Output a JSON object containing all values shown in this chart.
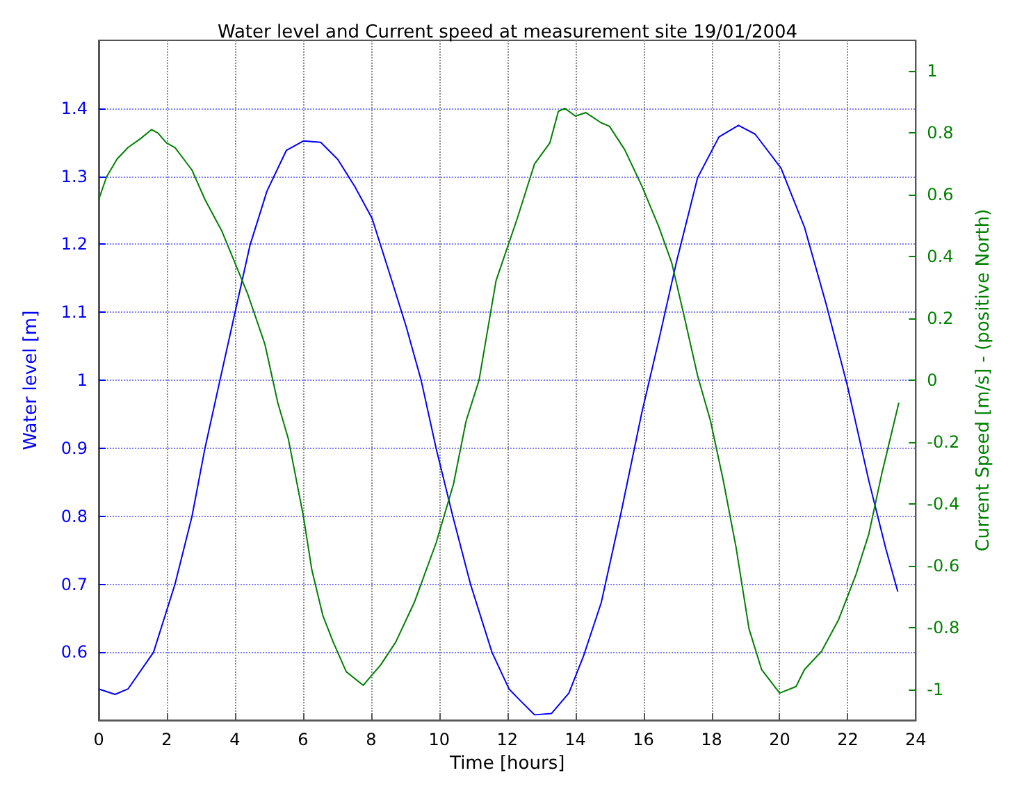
{
  "chart_data": {
    "type": "line",
    "title": "Water level and Current speed at measurement site 19/01/2004",
    "xlabel": "Time [hours]",
    "ylabel": "Water level [m]",
    "y2label": "Current Speed [m/s] - (positive North)",
    "xlim": [
      0,
      24
    ],
    "xticks": [
      0,
      2,
      4,
      6,
      8,
      10,
      12,
      14,
      16,
      18,
      20,
      22,
      24
    ],
    "ylim": [
      0.5,
      1.5
    ],
    "yticks": [
      0.6,
      0.7,
      0.8,
      0.9,
      1,
      1.1,
      1.2,
      1.3,
      1.4
    ],
    "y2lim": [
      -1.1,
      1.1
    ],
    "y2ticks": [
      -1,
      -0.8,
      -0.6,
      -0.4,
      -0.2,
      0,
      0.2,
      0.4,
      0.6,
      0.8,
      1
    ],
    "grid": true,
    "marker": "none",
    "line_style": "solid",
    "series": [
      {
        "color": "#0000ff",
        "x": [
          0,
          0.48,
          0.86,
          1.61,
          2.24,
          2.74,
          3.12,
          3.56,
          4.0,
          4.44,
          4.94,
          5.51,
          6.01,
          6.52,
          7.02,
          7.52,
          8.03,
          8.53,
          9.03,
          9.47,
          9.91,
          10.4,
          10.92,
          11.55,
          12.05,
          12.3,
          12.8,
          13.3,
          13.81,
          14.25,
          14.76,
          15.32,
          15.95,
          16.45,
          16.96,
          17.59,
          18.22,
          18.79,
          19.28,
          20.04,
          20.73,
          21.36,
          21.99,
          22.62,
          23.12,
          23.47
        ],
        "values": [
          0.546,
          0.538,
          0.546,
          0.6,
          0.7,
          0.8,
          0.9,
          1.0,
          1.099,
          1.198,
          1.278,
          1.338,
          1.352,
          1.35,
          1.325,
          1.285,
          1.238,
          1.159,
          1.079,
          1.0,
          0.9,
          0.8,
          0.7,
          0.6,
          0.546,
          0.533,
          0.508,
          0.51,
          0.54,
          0.596,
          0.673,
          0.8,
          0.952,
          1.059,
          1.172,
          1.298,
          1.358,
          1.375,
          1.362,
          1.312,
          1.225,
          1.113,
          0.992,
          0.852,
          0.752,
          0.689
        ]
      },
      {
        "color": "#008000",
        "axis": "y2",
        "x": [
          0,
          0.23,
          0.54,
          0.86,
          1.23,
          1.55,
          1.74,
          1.99,
          2.24,
          2.74,
          3.12,
          3.62,
          4.0,
          4.38,
          4.88,
          5.26,
          5.57,
          6.01,
          6.26,
          6.58,
          6.89,
          7.27,
          7.77,
          8.28,
          8.72,
          9.28,
          9.91,
          10.42,
          10.79,
          11.17,
          11.67,
          12.3,
          12.8,
          13.25,
          13.5,
          13.69,
          14.0,
          14.31,
          14.76,
          15.0,
          15.45,
          15.95,
          16.45,
          16.83,
          17.2,
          17.59,
          17.97,
          18.34,
          18.72,
          19.1,
          19.47,
          20.0,
          20.48,
          20.73,
          21.23,
          21.73,
          22.24,
          22.62,
          22.99,
          23.5
        ],
        "values": [
          0.585,
          0.658,
          0.716,
          0.753,
          0.782,
          0.811,
          0.8,
          0.768,
          0.753,
          0.68,
          0.585,
          0.482,
          0.38,
          0.278,
          0.117,
          -0.073,
          -0.19,
          -0.439,
          -0.614,
          -0.76,
          -0.848,
          -0.943,
          -0.987,
          -0.921,
          -0.848,
          -0.716,
          -0.526,
          -0.336,
          -0.132,
          0,
          0.322,
          0.526,
          0.7,
          0.768,
          0.87,
          0.88,
          0.855,
          0.866,
          0.833,
          0.822,
          0.746,
          0.629,
          0.497,
          0.38,
          0.205,
          0.015,
          -0.132,
          -0.322,
          -0.541,
          -0.804,
          -0.936,
          -1.012,
          -0.991,
          -0.936,
          -0.877,
          -0.775,
          -0.629,
          -0.497,
          -0.307,
          -0.073
        ]
      }
    ]
  }
}
